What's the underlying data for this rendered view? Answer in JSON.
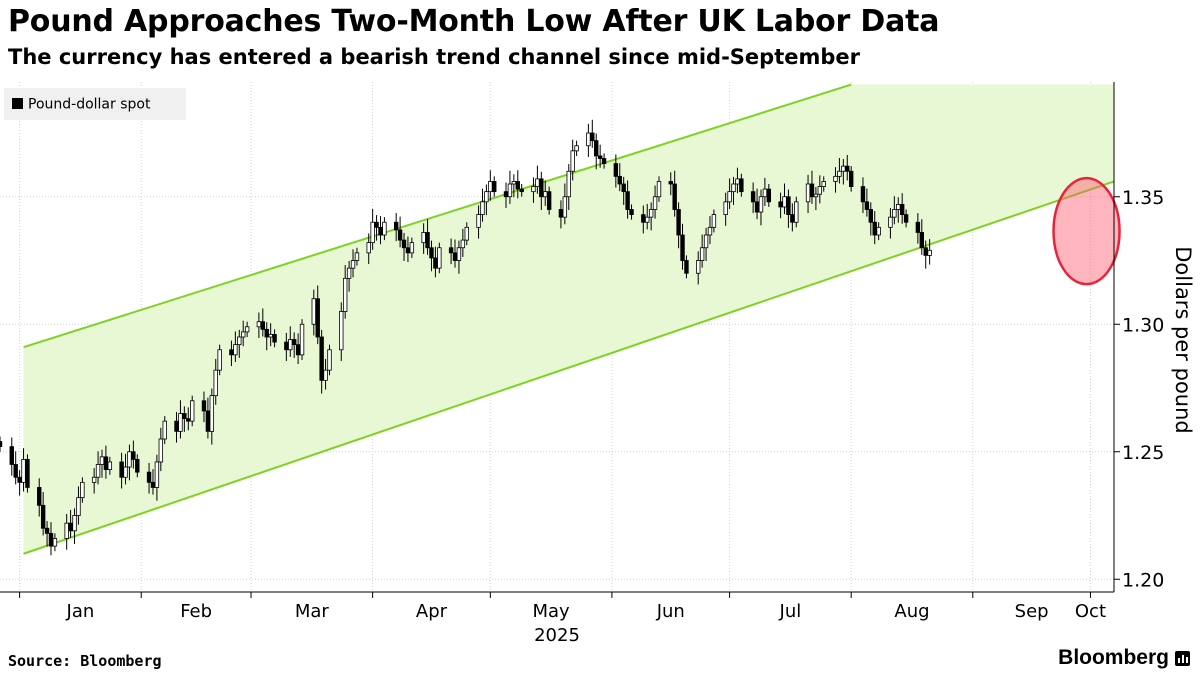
{
  "chart_data": {
    "type": "candlestick",
    "title": "Pound Approaches Two-Month Low After UK Labor Data",
    "subtitle": "The currency has entered a bearish trend channel since mid-September",
    "legend": {
      "label": "Pound-dollar spot",
      "placement": "top-left"
    },
    "ylabel": "Dollars per pound",
    "ylim": [
      1.195,
      1.395
    ],
    "yticks": [
      1.2,
      1.25,
      1.3,
      1.35
    ],
    "ytick_labels": [
      "1.20",
      "1.25",
      "1.30",
      "1.35"
    ],
    "xlim": [
      "2024-12-27",
      "2025-10-07"
    ],
    "x_tick_labels": [
      "Jan",
      "Feb",
      "Mar",
      "Apr",
      "May",
      "Jun",
      "Jul",
      "Aug",
      "Sep",
      "Oct"
    ],
    "x_tick_dates": [
      "2025-01-01",
      "2025-02-01",
      "2025-03-01",
      "2025-04-01",
      "2025-05-01",
      "2025-06-01",
      "2025-07-01",
      "2025-08-01",
      "2025-09-01",
      "2025-10-01"
    ],
    "x_year_label": "2025",
    "grid": true,
    "trend_channel": {
      "color": "#7ed321",
      "fill": "#e8f7d4",
      "upper": [
        [
          "2025-01-02",
          1.291
        ],
        [
          "2025-08-01",
          1.394
        ]
      ],
      "lower": [
        [
          "2025-01-02",
          1.21
        ],
        [
          "2025-10-07",
          1.356
        ]
      ]
    },
    "highlight": {
      "date": "2025-09-30",
      "value": 1.3365,
      "color": "#ff5a6e"
    },
    "series": [
      {
        "close": [
          1.252,
          1.245,
          1.24,
          1.238,
          1.247,
          1.236,
          1.229,
          1.22,
          1.218,
          1.213,
          1.216,
          1.222,
          1.219,
          1.225,
          1.232,
          1.238,
          1.24,
          1.245,
          1.248,
          1.243,
          1.246,
          1.24,
          1.244,
          1.25,
          1.247,
          1.242,
          1.238,
          1.236,
          1.246,
          1.255,
          1.262,
          1.258,
          1.265,
          1.263,
          1.262,
          1.27,
          1.266,
          1.258,
          1.272,
          1.282,
          1.29,
          1.288,
          1.292,
          1.295,
          1.297,
          1.299,
          1.301,
          1.298,
          1.295,
          1.296,
          1.293,
          1.29,
          1.294,
          1.292,
          1.288,
          1.3,
          1.31,
          1.295,
          1.278,
          1.282,
          1.29,
          1.305,
          1.318,
          1.322,
          1.325,
          1.328,
          1.332,
          1.34,
          1.338,
          1.335,
          1.34,
          1.337,
          1.333,
          1.33,
          1.328,
          1.332,
          1.336,
          1.33,
          1.326,
          1.322,
          1.33,
          1.328,
          1.325,
          1.33,
          1.333,
          1.338,
          1.343,
          1.348,
          1.352,
          1.356,
          1.352,
          1.35,
          1.355,
          1.356,
          1.353,
          1.352,
          1.354,
          1.357,
          1.35,
          1.352,
          1.345,
          1.342,
          1.35,
          1.36,
          1.368,
          1.37,
          1.375,
          1.372,
          1.366,
          1.365,
          1.363,
          1.358,
          1.355,
          1.352,
          1.345,
          1.343,
          1.34,
          1.342,
          1.345,
          1.35,
          1.356,
          1.355,
          1.345,
          1.335,
          1.325,
          1.32,
          1.325,
          1.33,
          1.335,
          1.338,
          1.343,
          1.348,
          1.352,
          1.355,
          1.357,
          1.352,
          1.348,
          1.344,
          1.35,
          1.353,
          1.348,
          1.346,
          1.35,
          1.343,
          1.34,
          1.348,
          1.355,
          1.35,
          1.351,
          1.354,
          1.356,
          1.358,
          1.36,
          1.362,
          1.36,
          1.354,
          1.348,
          1.345,
          1.34,
          1.335,
          1.338,
          1.342,
          1.345,
          1.347,
          1.343,
          1.34,
          1.336,
          1.33,
          1.327,
          1.329
        ]
      }
    ]
  },
  "footer": {
    "source": "Source: Bloomberg",
    "brand": "Bloomberg"
  }
}
